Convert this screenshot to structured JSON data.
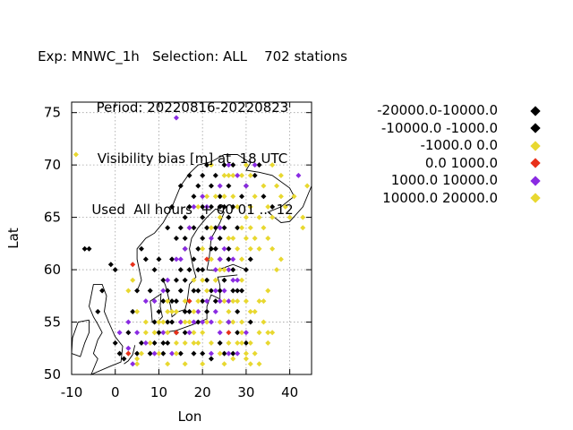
{
  "chart_data": {
    "type": "scatter",
    "title_lines": [
      "Exp: MNWC_1h   Selection: ALL    702 stations",
      "Period: 20220816-20220823",
      "Visibility bias [m] at  18 UTC",
      "Used  All hours  + 00 01 ... 12"
    ],
    "xlabel": "Lon",
    "ylabel": "Lat",
    "xlim": [
      -10,
      45
    ],
    "ylim": [
      50,
      76
    ],
    "xticks": [
      "-10",
      "0",
      "10",
      "20",
      "30",
      "40"
    ],
    "yticks": [
      "50",
      "55",
      "60",
      "65",
      "70",
      "75"
    ],
    "grid": true,
    "legend_position": "right",
    "series": [
      {
        "name": "-20000.0-10000.0",
        "color": "#000000",
        "points": [
          [
            11,
            53
          ],
          [
            12,
            55
          ],
          [
            13,
            57
          ],
          [
            15,
            60
          ],
          [
            16,
            62
          ],
          [
            18,
            64
          ],
          [
            20,
            66
          ],
          [
            22,
            68
          ],
          [
            24,
            66
          ],
          [
            25,
            64
          ],
          [
            26,
            62
          ],
          [
            27,
            60
          ],
          [
            28,
            58
          ],
          [
            20,
            60
          ],
          [
            19,
            58
          ],
          [
            17,
            56
          ],
          [
            21,
            56
          ],
          [
            23,
            57
          ],
          [
            10,
            54
          ],
          [
            14,
            59
          ]
        ]
      },
      {
        "name": "-10000.0 -1000.0",
        "color": "#000000",
        "points": [
          [
            2,
            51.5
          ],
          [
            5,
            52
          ],
          [
            6,
            53
          ],
          [
            8,
            52
          ],
          [
            9,
            55
          ],
          [
            10,
            56
          ],
          [
            11,
            57
          ],
          [
            12,
            58
          ],
          [
            13,
            61
          ],
          [
            14,
            63
          ],
          [
            15,
            64
          ],
          [
            16,
            65
          ],
          [
            17,
            66
          ],
          [
            18,
            67
          ],
          [
            19,
            68
          ],
          [
            20,
            69
          ],
          [
            21,
            70
          ],
          [
            23,
            69
          ],
          [
            25,
            70
          ],
          [
            27,
            70
          ],
          [
            26,
            68
          ],
          [
            24,
            67
          ],
          [
            22,
            66
          ],
          [
            21,
            64
          ],
          [
            20,
            63
          ],
          [
            19,
            62
          ],
          [
            18,
            61
          ],
          [
            17,
            60
          ],
          [
            16,
            59
          ],
          [
            15,
            58
          ],
          [
            14,
            57
          ],
          [
            13,
            55
          ],
          [
            12,
            53
          ],
          [
            14,
            54
          ],
          [
            16,
            54
          ],
          [
            18,
            52
          ],
          [
            20,
            52
          ],
          [
            22,
            51.5
          ],
          [
            24,
            53
          ],
          [
            26,
            55
          ],
          [
            28,
            56
          ],
          [
            29,
            58
          ],
          [
            30,
            60
          ],
          [
            31,
            61
          ],
          [
            24,
            61
          ],
          [
            25,
            59
          ],
          [
            23,
            62
          ],
          [
            26,
            65
          ],
          [
            27,
            66
          ],
          [
            28,
            64
          ],
          [
            29,
            67
          ],
          [
            30,
            68
          ],
          [
            32,
            69
          ],
          [
            33,
            70
          ],
          [
            34,
            67
          ],
          [
            36,
            66
          ],
          [
            25,
            66
          ],
          [
            22,
            58
          ],
          [
            21,
            59
          ],
          [
            20,
            57
          ],
          [
            19,
            55
          ],
          [
            16,
            56
          ],
          [
            15,
            52
          ],
          [
            11,
            52
          ],
          [
            9,
            53
          ],
          [
            8,
            58
          ],
          [
            9,
            60
          ],
          [
            10,
            61
          ],
          [
            7,
            61
          ],
          [
            6,
            62
          ],
          [
            5,
            58
          ],
          [
            -1,
            60.5
          ],
          [
            0,
            60
          ],
          [
            -3,
            58
          ],
          [
            -4,
            56
          ],
          [
            0,
            53
          ],
          [
            1,
            52
          ],
          [
            3,
            54
          ],
          [
            4,
            56
          ],
          [
            12,
            64
          ],
          [
            13,
            66
          ],
          [
            15,
            68
          ],
          [
            17,
            69
          ],
          [
            23,
            64
          ],
          [
            24,
            63
          ],
          [
            26,
            61
          ],
          [
            27,
            58
          ],
          [
            28,
            54
          ],
          [
            30,
            53
          ],
          [
            31,
            55
          ],
          [
            25,
            52
          ],
          [
            27,
            52
          ],
          [
            18,
            58
          ],
          [
            19,
            60
          ],
          [
            20,
            65
          ],
          [
            22,
            62
          ],
          [
            24,
            58
          ],
          [
            16,
            63
          ],
          [
            11,
            59
          ],
          [
            -7,
            62
          ],
          [
            -6,
            62
          ]
        ]
      },
      {
        "name": "-1000.0 0.0",
        "color": "#e8d830",
        "points": [
          [
            -9,
            71
          ],
          [
            3,
            52
          ],
          [
            5,
            51
          ],
          [
            6,
            52
          ],
          [
            8,
            53
          ],
          [
            10,
            52
          ],
          [
            12,
            51
          ],
          [
            14,
            53
          ],
          [
            16,
            57
          ],
          [
            18,
            59
          ],
          [
            22,
            53
          ],
          [
            24,
            55
          ],
          [
            26,
            56
          ],
          [
            28,
            57
          ],
          [
            29,
            54
          ],
          [
            30,
            52
          ],
          [
            31,
            53
          ],
          [
            32,
            52
          ],
          [
            33,
            54
          ],
          [
            34,
            55
          ],
          [
            35,
            53
          ],
          [
            36,
            54
          ],
          [
            25,
            51
          ],
          [
            27,
            51.5
          ],
          [
            31,
            51
          ],
          [
            29,
            59
          ],
          [
            31,
            62
          ],
          [
            32,
            63
          ],
          [
            33,
            62
          ],
          [
            35,
            63
          ],
          [
            36,
            62
          ],
          [
            37,
            60
          ],
          [
            38,
            61
          ],
          [
            34,
            57
          ],
          [
            35,
            58
          ],
          [
            32,
            56
          ],
          [
            30,
            57
          ],
          [
            28,
            62
          ],
          [
            27,
            63
          ],
          [
            29,
            64
          ],
          [
            30,
            65
          ],
          [
            31,
            66
          ],
          [
            32,
            67
          ],
          [
            34,
            64
          ],
          [
            36,
            65
          ],
          [
            37,
            68
          ],
          [
            38,
            67
          ],
          [
            39,
            66
          ],
          [
            40,
            65
          ],
          [
            43,
            64
          ],
          [
            41,
            67
          ],
          [
            44,
            68
          ],
          [
            38,
            69
          ],
          [
            36,
            70
          ],
          [
            34,
            68
          ],
          [
            30,
            70
          ],
          [
            29,
            69
          ],
          [
            27,
            69
          ],
          [
            25,
            69
          ],
          [
            23,
            67
          ],
          [
            22,
            70
          ],
          [
            26,
            63
          ],
          [
            24,
            60
          ],
          [
            23,
            59
          ],
          [
            21,
            55
          ],
          [
            20,
            54
          ],
          [
            19,
            53
          ],
          [
            17,
            55
          ],
          [
            15,
            55
          ],
          [
            13,
            56
          ],
          [
            11,
            55
          ],
          [
            4,
            59
          ],
          [
            3,
            58
          ],
          [
            5,
            56
          ],
          [
            7,
            55
          ],
          [
            17,
            64
          ],
          [
            19,
            66
          ],
          [
            21,
            67
          ],
          [
            22,
            64
          ],
          [
            20,
            62
          ],
          [
            25,
            57
          ],
          [
            27,
            55
          ],
          [
            29,
            53
          ],
          [
            33,
            51
          ],
          [
            12,
            57
          ],
          [
            14,
            56
          ],
          [
            16,
            53
          ],
          [
            18,
            54
          ]
        ]
      },
      {
        "name": "0.0 1000.0",
        "color": "#e8301a",
        "points": [
          [
            4,
            60.5
          ],
          [
            14,
            54
          ],
          [
            3,
            52
          ],
          [
            26,
            54
          ],
          [
            17,
            57
          ],
          [
            21,
            61
          ]
        ]
      },
      {
        "name": "1000.0 10000.0",
        "color": "#8a2be2",
        "points": [
          [
            14,
            74.5
          ],
          [
            4,
            51
          ],
          [
            3,
            52.5
          ],
          [
            5,
            54
          ],
          [
            7,
            53
          ],
          [
            9,
            52
          ],
          [
            11,
            54
          ],
          [
            13,
            52
          ],
          [
            15,
            55
          ],
          [
            17,
            54
          ],
          [
            19,
            56
          ],
          [
            21,
            57
          ],
          [
            23,
            56
          ],
          [
            25,
            58
          ],
          [
            27,
            59
          ],
          [
            26,
            57
          ],
          [
            24,
            57
          ],
          [
            22,
            55
          ],
          [
            20,
            55
          ],
          [
            18,
            55
          ],
          [
            23,
            60
          ],
          [
            24,
            61
          ],
          [
            25,
            62
          ],
          [
            26,
            60
          ],
          [
            27,
            61
          ],
          [
            28,
            59
          ],
          [
            24,
            64
          ],
          [
            22,
            63
          ],
          [
            21,
            66
          ],
          [
            20,
            67
          ],
          [
            18,
            66
          ],
          [
            17,
            64
          ],
          [
            16,
            62
          ],
          [
            15,
            61
          ],
          [
            14,
            61
          ],
          [
            24,
            68
          ],
          [
            26,
            70
          ],
          [
            28,
            69
          ],
          [
            30,
            68
          ],
          [
            32,
            70
          ],
          [
            42,
            69
          ],
          [
            11,
            58
          ],
          [
            12,
            59
          ],
          [
            9,
            57
          ],
          [
            7,
            57
          ],
          [
            3,
            55
          ],
          [
            1,
            54
          ],
          [
            26,
            52
          ],
          [
            28,
            52
          ],
          [
            30,
            54
          ],
          [
            22,
            52
          ],
          [
            24,
            54
          ],
          [
            26,
            55
          ],
          [
            23,
            58
          ]
        ]
      },
      {
        "name": "10000.0 20000.0",
        "color": "#e8d830",
        "points": [
          [
            43,
            65
          ],
          [
            5,
            51.5
          ],
          [
            7,
            54
          ],
          [
            9,
            54
          ],
          [
            10,
            55
          ],
          [
            12,
            56
          ],
          [
            16,
            55
          ],
          [
            18,
            56
          ],
          [
            19,
            57
          ],
          [
            21,
            58
          ],
          [
            23,
            59
          ],
          [
            25,
            60
          ],
          [
            27,
            57
          ],
          [
            29,
            55
          ],
          [
            31,
            56
          ],
          [
            33,
            57
          ],
          [
            35,
            54
          ],
          [
            28,
            53
          ],
          [
            30,
            51.5
          ],
          [
            26,
            53
          ],
          [
            24,
            52
          ],
          [
            20,
            51
          ],
          [
            29,
            61
          ],
          [
            30,
            63
          ],
          [
            31,
            64
          ],
          [
            33,
            65
          ],
          [
            35,
            66
          ],
          [
            28,
            66
          ],
          [
            27,
            67
          ],
          [
            25,
            67
          ],
          [
            31,
            69
          ],
          [
            26,
            69
          ],
          [
            24,
            65
          ],
          [
            22,
            61
          ],
          [
            20,
            59
          ],
          [
            18,
            53
          ],
          [
            16,
            51
          ],
          [
            14,
            52
          ],
          [
            12,
            54
          ]
        ]
      }
    ]
  },
  "legend": {
    "entries": [
      {
        "label": "-20000.0-10000.0",
        "color": "#000000"
      },
      {
        "label": "-10000.0 -1000.0",
        "color": "#000000"
      },
      {
        "label": "-1000.0 0.0",
        "color": "#e8d830"
      },
      {
        "label": "0.0 1000.0",
        "color": "#e8301a"
      },
      {
        "label": "1000.0 10000.0",
        "color": "#8a2be2"
      },
      {
        "label": "10000.0 20000.0",
        "color": "#e8d830"
      }
    ]
  }
}
